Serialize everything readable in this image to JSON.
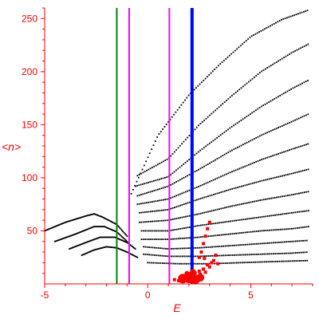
{
  "chart_data": {
    "type": "scatter",
    "xlabel": "E",
    "ylabel": "<n>",
    "xlim": [
      -5,
      8
    ],
    "ylim": [
      0,
      260
    ],
    "xticks": [
      -5,
      0,
      5
    ],
    "xtick_labels": [
      "-5",
      "0",
      "5"
    ],
    "yticks": [
      50,
      100,
      150,
      200,
      250
    ],
    "ytick_labels": [
      "50",
      "100",
      "150",
      "200",
      "250"
    ],
    "grid": false,
    "legend": "none",
    "colors": {
      "axis": "#ff0000",
      "dots": "#000000",
      "highlight": "#ff0000",
      "line_green": "#008000",
      "line_magenta": "#ff00ff",
      "line_blue": "#0000ff"
    },
    "vertical_lines": [
      {
        "x": -1.5,
        "color": "#008000",
        "width": 2
      },
      {
        "x": -0.9,
        "color": "#ff00ff",
        "width": 2
      },
      {
        "x": 1.05,
        "color": "#ff00ff",
        "width": 2
      },
      {
        "x": 2.15,
        "color": "#0000ff",
        "width": 4
      }
    ],
    "band_curves": [
      [
        [
          -5.0,
          50
        ],
        [
          -4.0,
          58
        ],
        [
          -3.0,
          64
        ],
        [
          -2.6,
          66
        ],
        [
          -2.2,
          63
        ],
        [
          -1.5,
          56
        ],
        [
          -1.0,
          45
        ]
      ],
      [
        [
          -4.5,
          40
        ],
        [
          -3.5,
          47
        ],
        [
          -2.6,
          54
        ],
        [
          -2.1,
          54
        ],
        [
          -1.5,
          49
        ],
        [
          -1.0,
          40
        ]
      ],
      [
        [
          -3.8,
          33
        ],
        [
          -3.0,
          39
        ],
        [
          -2.3,
          44
        ],
        [
          -1.6,
          44
        ],
        [
          -1.0,
          39
        ],
        [
          -0.6,
          33
        ]
      ],
      [
        [
          -3.2,
          27
        ],
        [
          -2.6,
          32
        ],
        [
          -2.0,
          35
        ],
        [
          -1.5,
          34
        ],
        [
          -1.0,
          30
        ],
        [
          -0.5,
          25
        ]
      ],
      [
        [
          -0.8,
          85
        ],
        [
          0.5,
          140
        ],
        [
          2.0,
          178
        ],
        [
          3.5,
          207
        ],
        [
          5.0,
          233
        ],
        [
          6.5,
          249
        ],
        [
          7.8,
          258
        ]
      ],
      [
        [
          -0.5,
          102
        ],
        [
          1.0,
          118
        ],
        [
          2.5,
          150
        ],
        [
          4.0,
          176
        ],
        [
          5.5,
          200
        ],
        [
          7.0,
          218
        ],
        [
          7.8,
          226
        ]
      ],
      [
        [
          -0.6,
          92
        ],
        [
          1.0,
          101
        ],
        [
          2.5,
          125
        ],
        [
          4.0,
          147
        ],
        [
          5.5,
          167
        ],
        [
          7.0,
          184
        ],
        [
          7.8,
          192
        ]
      ],
      [
        [
          -0.5,
          83
        ],
        [
          1.0,
          92
        ],
        [
          2.5,
          108
        ],
        [
          4.0,
          125
        ],
        [
          5.5,
          140
        ],
        [
          7.0,
          153
        ],
        [
          7.8,
          160
        ]
      ],
      [
        [
          -0.5,
          75
        ],
        [
          1.0,
          80
        ],
        [
          2.5,
          92
        ],
        [
          4.0,
          105
        ],
        [
          5.5,
          117
        ],
        [
          7.0,
          127
        ],
        [
          7.8,
          132
        ]
      ],
      [
        [
          -0.4,
          67
        ],
        [
          1.0,
          70
        ],
        [
          2.5,
          80
        ],
        [
          4.0,
          89
        ],
        [
          5.5,
          97
        ],
        [
          7.0,
          104
        ],
        [
          7.8,
          108
        ]
      ],
      [
        [
          -0.4,
          58
        ],
        [
          1.0,
          60
        ],
        [
          2.5,
          66
        ],
        [
          4.0,
          73
        ],
        [
          5.5,
          79
        ],
        [
          7.0,
          84
        ],
        [
          7.8,
          87
        ]
      ],
      [
        [
          -0.3,
          50
        ],
        [
          1.0,
          50
        ],
        [
          2.5,
          55
        ],
        [
          4.0,
          59
        ],
        [
          5.5,
          63
        ],
        [
          7.0,
          67
        ],
        [
          7.8,
          69
        ]
      ],
      [
        [
          -0.3,
          42
        ],
        [
          1.0,
          42
        ],
        [
          2.5,
          44
        ],
        [
          4.0,
          47
        ],
        [
          5.5,
          50
        ],
        [
          7.0,
          52
        ],
        [
          7.8,
          54
        ]
      ],
      [
        [
          -0.2,
          35
        ],
        [
          1.0,
          33
        ],
        [
          2.5,
          34
        ],
        [
          4.0,
          36
        ],
        [
          5.5,
          38
        ],
        [
          7.0,
          40
        ],
        [
          7.8,
          41
        ]
      ],
      [
        [
          -0.2,
          28
        ],
        [
          1.0,
          26
        ],
        [
          2.5,
          26
        ],
        [
          4.0,
          27
        ],
        [
          5.5,
          28
        ],
        [
          7.0,
          29
        ],
        [
          7.8,
          30
        ]
      ],
      [
        [
          0.0,
          20
        ],
        [
          1.5,
          19
        ],
        [
          3.0,
          19
        ],
        [
          4.5,
          20
        ],
        [
          6.0,
          21
        ],
        [
          7.8,
          22
        ]
      ]
    ],
    "red_points": [
      [
        2.0,
        5
      ],
      [
        2.1,
        8
      ],
      [
        2.2,
        3
      ],
      [
        2.3,
        10
      ],
      [
        2.4,
        6
      ],
      [
        2.5,
        12
      ],
      [
        1.8,
        4
      ],
      [
        1.9,
        9
      ],
      [
        2.6,
        7
      ],
      [
        2.7,
        14
      ],
      [
        2.8,
        11
      ],
      [
        3.0,
        16
      ],
      [
        3.1,
        20
      ],
      [
        2.9,
        18
      ],
      [
        2.5,
        25
      ],
      [
        2.6,
        30
      ],
      [
        2.7,
        38
      ],
      [
        2.8,
        45
      ],
      [
        2.9,
        52
      ],
      [
        3.0,
        58
      ],
      [
        3.2,
        22
      ],
      [
        3.4,
        19
      ],
      [
        1.6,
        6
      ],
      [
        1.5,
        3
      ],
      [
        1.3,
        4
      ],
      [
        2.35,
        2
      ],
      [
        2.45,
        4
      ],
      [
        2.55,
        9
      ],
      [
        3.3,
        27
      ],
      [
        2.75,
        24
      ]
    ],
    "red_blob": [
      [
        1.7,
        5,
        6
      ],
      [
        2.0,
        6,
        7
      ],
      [
        2.3,
        4,
        6
      ],
      [
        2.55,
        6,
        5
      ],
      [
        2.2,
        11,
        4
      ],
      [
        1.9,
        10,
        3
      ]
    ]
  }
}
